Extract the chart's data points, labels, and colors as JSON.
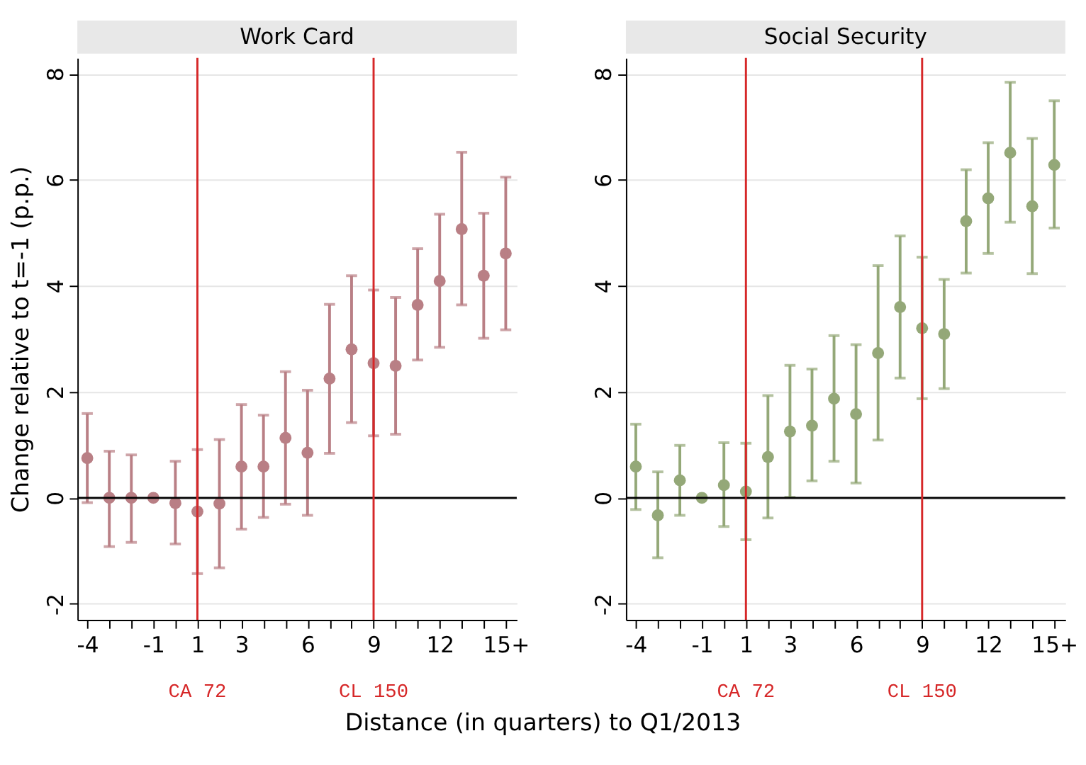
{
  "chart_data": [
    {
      "type": "scatter",
      "title": "Work Card",
      "ylabel": "Change relative to t=-1 (p.p.)",
      "xlabel": "Distance (in quarters) to Q1/2013",
      "x": [
        -4,
        -3,
        -2,
        -1,
        0,
        1,
        2,
        3,
        4,
        5,
        6,
        7,
        8,
        9,
        10,
        11,
        12,
        13,
        14,
        15
      ],
      "series": [
        {
          "color": "#b97f85",
          "values": [
            0.75,
            0,
            0,
            0,
            -0.1,
            -0.26,
            -0.11,
            0.59,
            0.59,
            1.13,
            0.85,
            2.25,
            2.8,
            2.54,
            2.49,
            3.64,
            4.09,
            5.07,
            4.19,
            4.61
          ],
          "errors": [
            [
              -0.09,
              1.59
            ],
            [
              -0.92,
              0.88
            ],
            [
              -0.84,
              0.81
            ],
            null,
            [
              -0.87,
              0.69
            ],
            [
              -1.43,
              0.91
            ],
            [
              -1.32,
              1.1
            ],
            [
              -0.59,
              1.76
            ],
            [
              -0.37,
              1.56
            ],
            [
              -0.12,
              2.38
            ],
            [
              -0.33,
              2.03
            ],
            [
              0.84,
              3.65
            ],
            [
              1.42,
              4.19
            ],
            [
              1.17,
              3.92
            ],
            [
              1.2,
              3.78
            ],
            [
              2.6,
              4.7
            ],
            [
              2.84,
              5.35
            ],
            [
              3.64,
              6.52
            ],
            [
              3.01,
              5.37
            ],
            [
              3.17,
              6.05
            ]
          ]
        }
      ],
      "xlim": [
        -4.45,
        15.5
      ],
      "xticks": [
        -4,
        {
          "value": -3,
          "label": null
        },
        {
          "value": -2,
          "label": null
        },
        -1,
        {
          "value": 0,
          "label": null
        },
        1,
        {
          "value": 2,
          "label": null
        },
        3,
        {
          "value": 4,
          "label": null
        },
        {
          "value": 5,
          "label": null
        },
        6,
        {
          "value": 7,
          "label": null
        },
        {
          "value": 8,
          "label": null
        },
        9,
        {
          "value": 10,
          "label": null
        },
        {
          "value": 11,
          "label": null
        },
        12,
        {
          "value": 13,
          "label": null
        },
        {
          "value": 14,
          "label": null
        },
        {
          "value": 15,
          "label": "15+"
        }
      ],
      "ylim": [
        -2.3,
        8.3
      ],
      "yticks": [
        -2,
        0,
        2,
        4,
        6,
        8
      ],
      "grid": "y",
      "marker": "circle",
      "ref_lines": [
        {
          "axis": "y",
          "value": 0,
          "color": "#000000"
        },
        {
          "axis": "x",
          "value": 1,
          "label": "CA 72",
          "color": "#d62728"
        },
        {
          "axis": "x",
          "value": 9,
          "label": "CL 150",
          "color": "#d62728"
        }
      ]
    },
    {
      "type": "scatter",
      "title": "Social Security",
      "x": [
        -4,
        -3,
        -2,
        -1,
        0,
        1,
        2,
        3,
        4,
        5,
        6,
        7,
        8,
        9,
        10,
        11,
        12,
        13,
        14,
        15
      ],
      "series": [
        {
          "color": "#94a878",
          "values": [
            0.59,
            -0.33,
            0.33,
            0,
            0.24,
            0.12,
            0.77,
            1.25,
            1.36,
            1.87,
            1.58,
            2.73,
            3.6,
            3.2,
            3.09,
            5.22,
            5.65,
            6.51,
            5.5,
            6.28
          ],
          "errors": [
            [
              -0.22,
              1.39
            ],
            [
              -1.13,
              0.49
            ],
            [
              -0.33,
              0.99
            ],
            null,
            [
              -0.54,
              1.04
            ],
            [
              -0.79,
              1.03
            ],
            [
              -0.38,
              1.93
            ],
            [
              0.01,
              2.5
            ],
            [
              0.32,
              2.43
            ],
            [
              0.69,
              3.06
            ],
            [
              0.28,
              2.89
            ],
            [
              1.09,
              4.38
            ],
            [
              2.26,
              4.94
            ],
            [
              1.87,
              4.54
            ],
            [
              2.06,
              4.12
            ],
            [
              4.24,
              6.19
            ],
            [
              4.61,
              6.7
            ],
            [
              5.2,
              7.84
            ],
            [
              4.23,
              6.78
            ],
            [
              5.09,
              7.49
            ]
          ]
        }
      ],
      "xlim": [
        -4.45,
        15.5
      ],
      "xticks": [
        -4,
        {
          "value": -3,
          "label": null
        },
        {
          "value": -2,
          "label": null
        },
        -1,
        {
          "value": 0,
          "label": null
        },
        1,
        {
          "value": 2,
          "label": null
        },
        3,
        {
          "value": 4,
          "label": null
        },
        {
          "value": 5,
          "label": null
        },
        6,
        {
          "value": 7,
          "label": null
        },
        {
          "value": 8,
          "label": null
        },
        9,
        {
          "value": 10,
          "label": null
        },
        {
          "value": 11,
          "label": null
        },
        12,
        {
          "value": 13,
          "label": null
        },
        {
          "value": 14,
          "label": null
        },
        {
          "value": 15,
          "label": "15+"
        }
      ],
      "ylim": [
        -2.3,
        8.3
      ],
      "yticks": [
        -2,
        0,
        2,
        4,
        6,
        8
      ],
      "grid": "y",
      "marker": "circle",
      "ref_lines": [
        {
          "axis": "y",
          "value": 0,
          "color": "#000000"
        },
        {
          "axis": "x",
          "value": 1,
          "label": "CA 72",
          "color": "#d62728"
        },
        {
          "axis": "x",
          "value": 9,
          "label": "CL 150",
          "color": "#d62728"
        }
      ]
    }
  ]
}
